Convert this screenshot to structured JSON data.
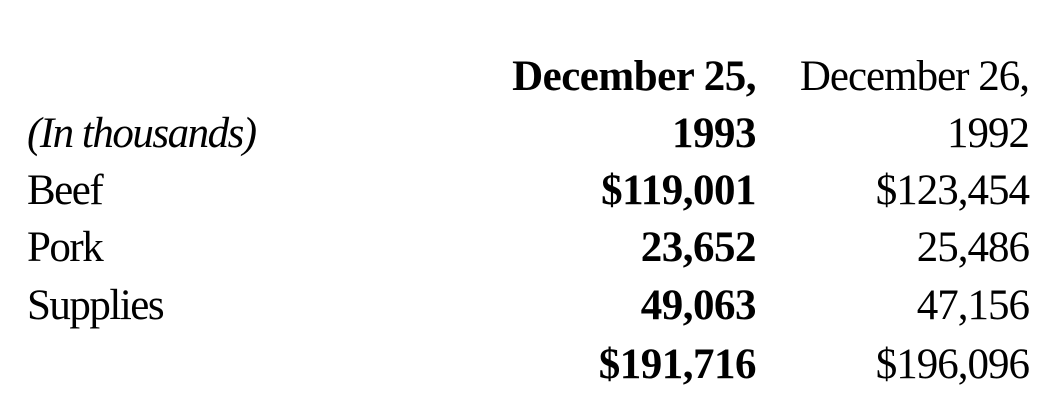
{
  "table": {
    "header_1993_line1": "December 25,",
    "header_1992_line1": "December 26,",
    "units_label": "(In thousands)",
    "header_1993_line2": "1993",
    "header_1992_line2": "1992",
    "rows": [
      {
        "label": "Beef",
        "y1993": "$119,001",
        "y1992": "$123,454"
      },
      {
        "label": "Pork",
        "y1993": "23,652",
        "y1992": "25,486"
      },
      {
        "label": "Supplies",
        "y1993": "49,063",
        "y1992": "47,156"
      }
    ],
    "total": {
      "y1993": "$191,716",
      "y1992": "$196,096"
    }
  }
}
